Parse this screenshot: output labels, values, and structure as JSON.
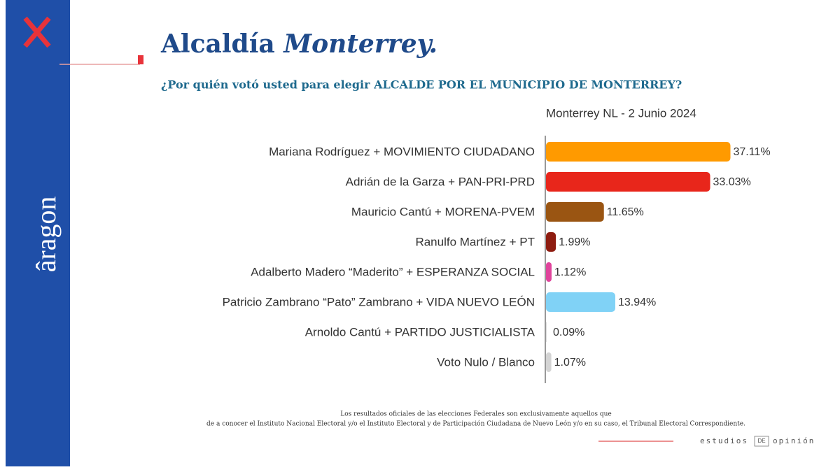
{
  "brand": {
    "logo": "âragon"
  },
  "chart_data": {
    "type": "bar",
    "orientation": "horizontal",
    "title": "Alcaldía",
    "title_emphasis": "Monterrey.",
    "subtitle": "¿Por quién votó usted para elegir ALCALDE POR EL MUNICIPIO DE MONTERREY?",
    "caption": "Monterrey NL - 2 Junio 2024",
    "categories": [
      "Mariana Rodríguez + MOVIMIENTO CIUDADANO",
      "Adrián de la Garza + PAN-PRI-PRD",
      "Mauricio Cantú + MORENA-PVEM",
      "Ranulfo Martínez + PT",
      "Adalberto Madero “Maderito” + ESPERANZA SOCIAL",
      "Patricio Zambrano “Pato” Zambrano + VIDA NUEVO LEÓN",
      "Arnoldo Cantú + PARTIDO JUSTICIALISTA",
      "Voto Nulo / Blanco"
    ],
    "values": [
      37.11,
      33.03,
      11.65,
      1.99,
      1.12,
      13.94,
      0.09,
      1.07
    ],
    "value_labels": [
      "37.11%",
      "33.03%",
      "11.65%",
      "1.99%",
      "1.12%",
      "13.94%",
      "0.09%",
      "1.07%"
    ],
    "colors": [
      "#ff9a00",
      "#e8261b",
      "#9a5512",
      "#8e1c10",
      "#e0449c",
      "#80d2f6",
      "#f2f2f2",
      "#d4d4d4"
    ]
  },
  "footer": {
    "note_lines": [
      "Los resultados oficiales de las elecciones Federales son exclusivamente aquellos que",
      "de a conocer el Instituto Nacional Electoral y/o el Instituto Electoral y de Participación Ciudadana de Nuevo León y/o en su caso, el Tribunal Electoral Correspondiente."
    ],
    "brand_words": [
      "estudios",
      "DE",
      "opinión"
    ]
  }
}
